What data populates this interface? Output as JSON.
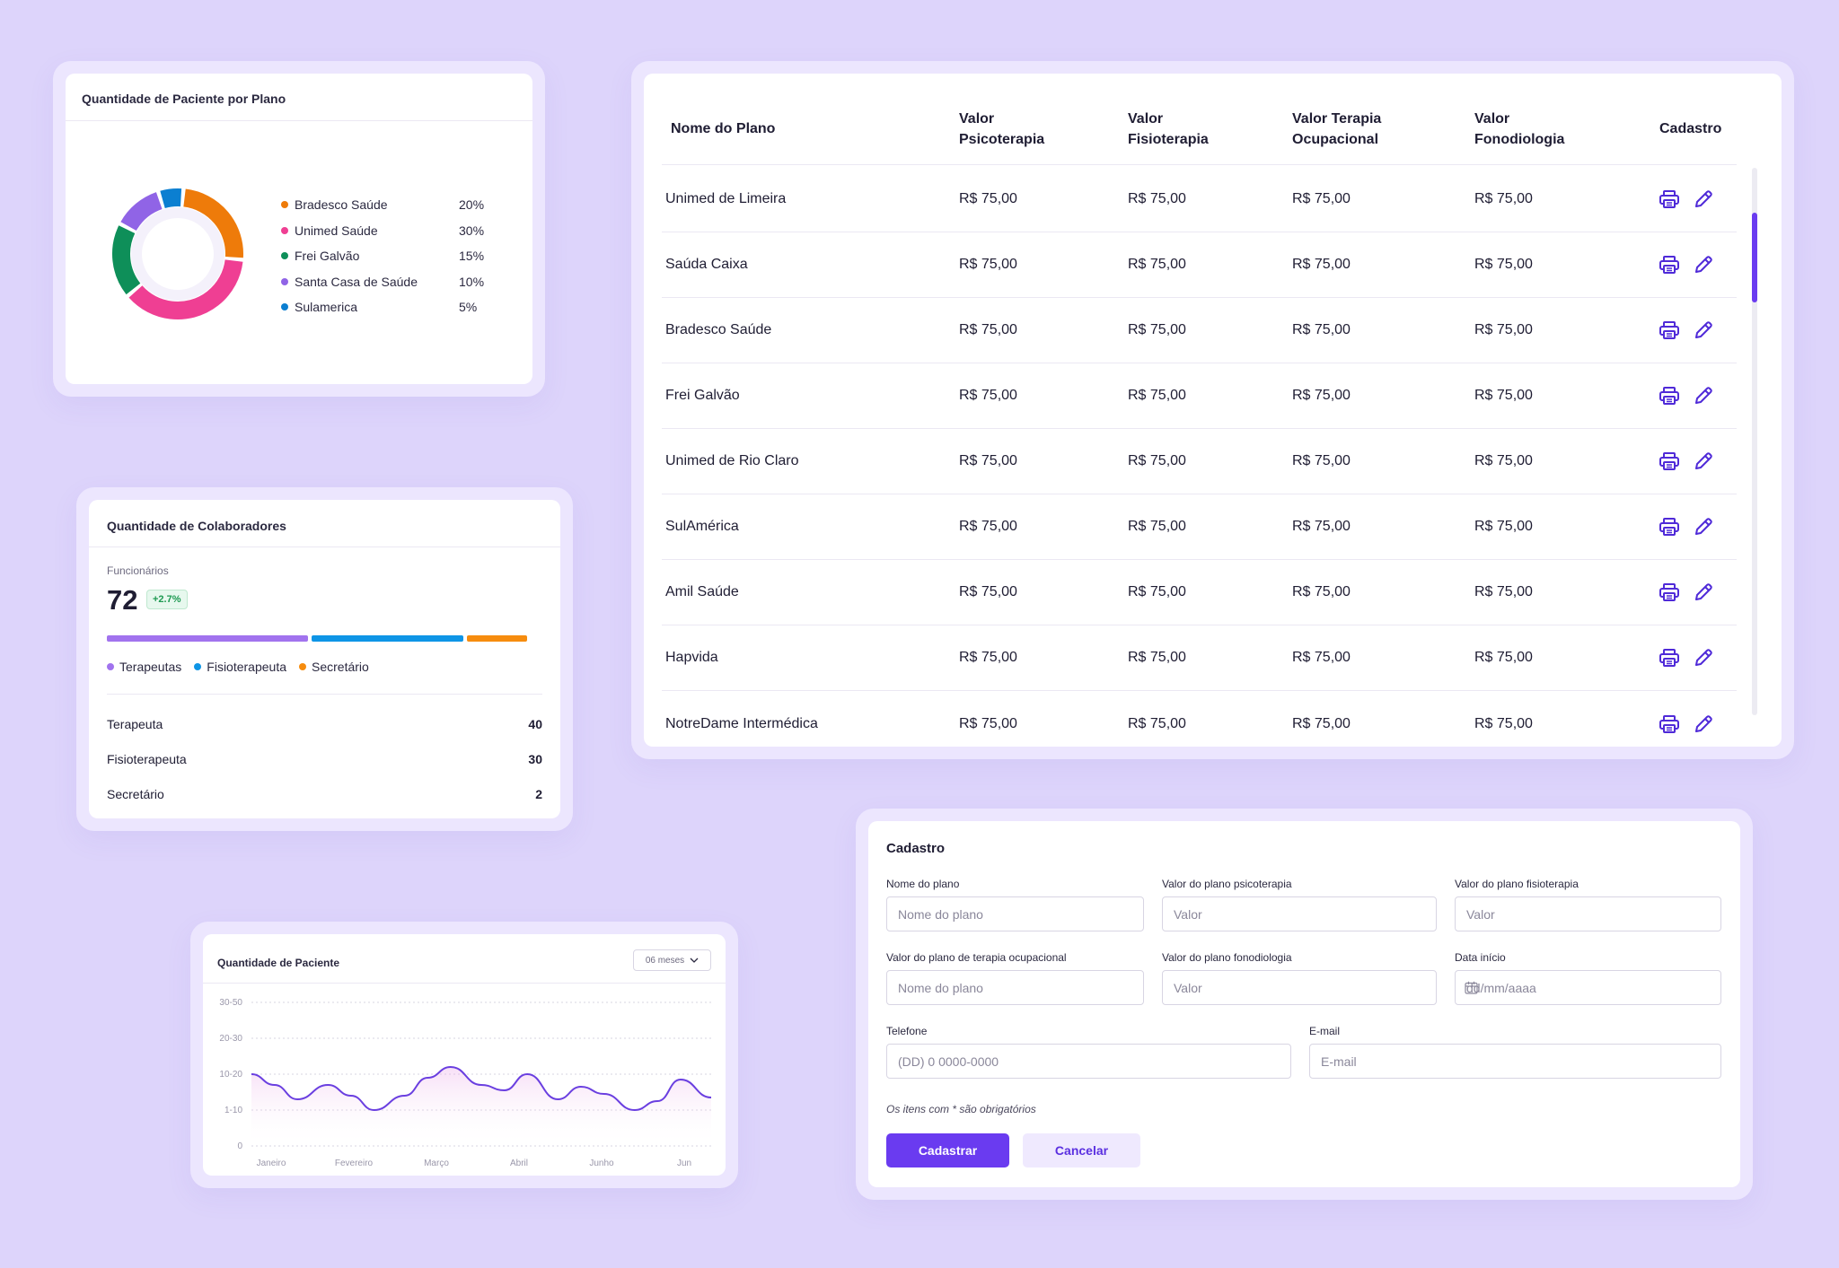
{
  "colors": {
    "background": "#ddd4fb",
    "accent": "#6a3bf0",
    "bradesco": "#ee7b0a",
    "unimed": "#ef3f93",
    "frei_galvao": "#0e8f59",
    "santa_casa": "#9064e6",
    "sulamerica": "#0b7fd1",
    "terapeutas": "#a173ee",
    "fisioterapeuta": "#0e95e6",
    "secretario": "#f68c0e",
    "line": "#6a3fe0"
  },
  "donut_card": {
    "title": "Quantidade de Paciente por Plano",
    "legend": [
      {
        "label": "Bradesco Saúde",
        "pct": "20%",
        "color": "#ee7b0a"
      },
      {
        "label": "Unimed Saúde",
        "pct": "30%",
        "color": "#ef3f93"
      },
      {
        "label": "Frei Galvão",
        "pct": "15%",
        "color": "#0e8f59"
      },
      {
        "label": "Santa Casa de Saúde",
        "pct": "10%",
        "color": "#9064e6"
      },
      {
        "label": "Sulamerica",
        "pct": "5%",
        "color": "#0b7fd1"
      }
    ]
  },
  "colab_card": {
    "title": "Quantidade de Colaboradores",
    "func_label": "Funcionários",
    "func_count": "72",
    "func_badge": "+2.7%",
    "legend": [
      "Terapeutas",
      "Fisioterapeuta",
      "Secretário"
    ],
    "rows": [
      {
        "label": "Terapeuta",
        "value": "40"
      },
      {
        "label": "Fisioterapeuta",
        "value": "30"
      },
      {
        "label": "Secretário",
        "value": "2"
      }
    ]
  },
  "line_card": {
    "title": "Quantidade de Paciente",
    "period": "06 meses"
  },
  "chart_data": [
    {
      "type": "pie",
      "title": "Quantidade de Paciente por Plano",
      "categories": [
        "Bradesco Saúde",
        "Unimed Saúde",
        "Frei Galvão",
        "Santa Casa de Saúde",
        "Sulamerica"
      ],
      "values": [
        20,
        30,
        15,
        10,
        5
      ],
      "labels": [
        "20%",
        "30%",
        "15%",
        "10%",
        "5%"
      ],
      "legend": "right"
    },
    {
      "type": "bar",
      "title": "Quantidade de Colaboradores",
      "categories": [
        "Terapeuta",
        "Fisioterapeuta",
        "Secretário"
      ],
      "values": [
        40,
        30,
        2
      ]
    },
    {
      "type": "area",
      "title": "Quantidade de Paciente",
      "y_categories": [
        "0",
        "1-10",
        "10-20",
        "20-30",
        "30-50"
      ],
      "x_ticks": [
        "Janeiro",
        "Fevereiro",
        "Março",
        "Abril",
        "Junho",
        "Jun"
      ],
      "x": [
        0,
        0.3,
        0.6,
        1,
        1.3,
        1.6,
        2,
        2.3,
        2.6,
        3,
        3.3,
        3.6,
        4,
        4.3,
        4.6,
        5,
        5.3,
        5.6,
        6
      ],
      "y": [
        2.0,
        1.7,
        1.3,
        1.7,
        1.4,
        1.0,
        1.4,
        1.9,
        2.2,
        1.7,
        1.55,
        2.0,
        1.3,
        1.65,
        1.45,
        1.0,
        1.25,
        1.85,
        1.35
      ],
      "ylim": [
        0,
        4
      ],
      "grid": true
    }
  ],
  "table": {
    "headers": [
      "Nome do Plano",
      "Valor Psicoterapia",
      "Valor Fisioterapia",
      "Valor Terapia Ocupacional",
      "Valor Fonodiologia",
      "Cadastro"
    ],
    "headers_lines": [
      [
        "Nome do Plano"
      ],
      [
        "Valor",
        "Psicoterapia"
      ],
      [
        "Valor",
        "Fisioterapia"
      ],
      [
        "Valor Terapia",
        "Ocupacional"
      ],
      [
        "Valor",
        "Fonodiologia"
      ],
      [
        "Cadastro"
      ]
    ],
    "rows": [
      [
        "Unimed de Limeira",
        "R$ 75,00",
        "R$ 75,00",
        "R$ 75,00",
        "R$ 75,00"
      ],
      [
        "Saúda Caixa",
        "R$ 75,00",
        "R$ 75,00",
        "R$ 75,00",
        "R$ 75,00"
      ],
      [
        "Bradesco Saúde",
        "R$ 75,00",
        "R$ 75,00",
        "R$ 75,00",
        "R$ 75,00"
      ],
      [
        "Frei Galvão",
        "R$ 75,00",
        "R$ 75,00",
        "R$ 75,00",
        "R$ 75,00"
      ],
      [
        "Unimed de Rio Claro",
        "R$ 75,00",
        "R$ 75,00",
        "R$ 75,00",
        "R$ 75,00"
      ],
      [
        "SulAmérica",
        "R$ 75,00",
        "R$ 75,00",
        "R$ 75,00",
        "R$ 75,00"
      ],
      [
        "Amil Saúde",
        "R$ 75,00",
        "R$ 75,00",
        "R$ 75,00",
        "R$ 75,00"
      ],
      [
        "Hapvida",
        "R$ 75,00",
        "R$ 75,00",
        "R$ 75,00",
        "R$ 75,00"
      ],
      [
        "NotreDame Intermédica",
        "R$ 75,00",
        "R$ 75,00",
        "R$ 75,00",
        "R$ 75,00"
      ]
    ],
    "row_icons": [
      "printer-icon",
      "pencil-icon"
    ]
  },
  "form": {
    "title": "Cadastro",
    "fields": {
      "nome_plano": {
        "label": "Nome do plano",
        "placeholder": "Nome do plano"
      },
      "psicoterapia": {
        "label": "Valor do plano psicoterapia",
        "placeholder": "Valor"
      },
      "fisioterapia": {
        "label": "Valor do plano fisioterapia",
        "placeholder": "Valor"
      },
      "terapia_ocupacional": {
        "label": "Valor do plano de terapia ocupacional",
        "placeholder": "Nome do plano"
      },
      "fonodiologia": {
        "label": "Valor do plano fonodiologia",
        "placeholder": "Valor"
      },
      "data_inicio": {
        "label": "Data início",
        "placeholder": "dd/mm/aaaa",
        "icon": "calendar-icon"
      },
      "telefone": {
        "label": "Telefone",
        "placeholder": "(DD) 0 0000-0000"
      },
      "email": {
        "label": "E-mail",
        "placeholder": "E-mail"
      }
    },
    "required_note": "Os itens com * são obrigatórios",
    "submit_label": "Cadastrar",
    "cancel_label": "Cancelar"
  }
}
